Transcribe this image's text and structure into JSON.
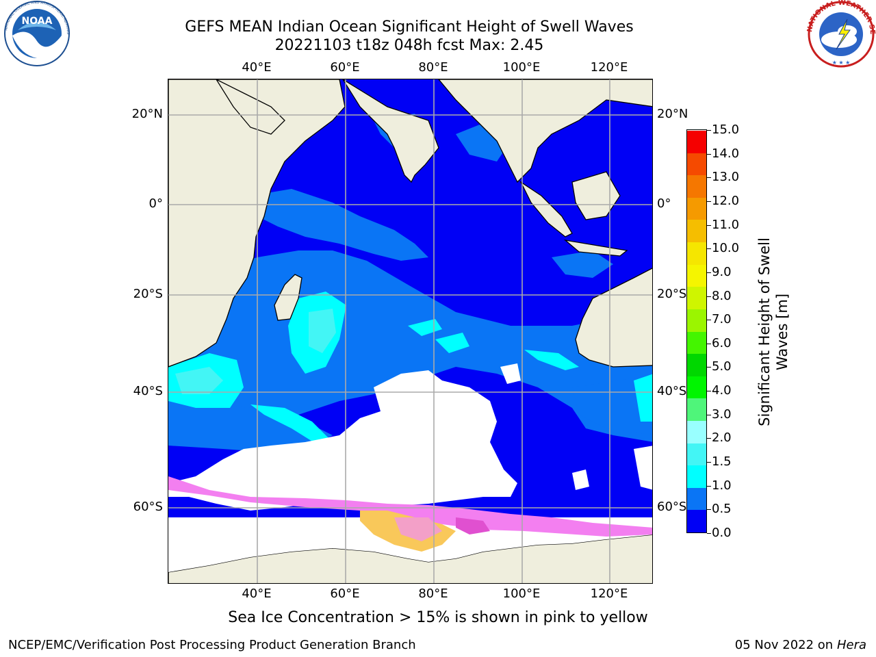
{
  "header": {
    "title_line1": "GEFS MEAN Indian Ocean Significant Height of Swell Waves",
    "title_line2": "20221103 t18z 048h fcst   Max: 2.45",
    "noaa_logo_text": "NOAA",
    "noaa_ring_text": "NATIONAL OCEANIC AND ATMOSPHERIC ADMINISTRATION · U.S. DEPARTMENT OF COMMERCE",
    "nws_ring_text": "NATIONAL WEATHER SERVICE"
  },
  "map": {
    "lon_ticks": [
      "40°E",
      "60°E",
      "80°E",
      "100°E",
      "120°E"
    ],
    "lat_ticks_left": [
      "20°N",
      "0°",
      "20°S",
      "40°S",
      "60°S"
    ],
    "lat_ticks_right": [
      "20°N",
      "0°",
      "20°S",
      "40°S",
      "60°S"
    ],
    "colors": {
      "land": "#efeedd",
      "ice_white": "#ffffff",
      "ocean_0": "#0000f5",
      "ocean_05": "#0a75f5",
      "ocean_1": "#00ffff",
      "ocean_15": "#43f5f5",
      "ice_pink": "#f37ff0",
      "ice_yellow": "#f9c85a"
    }
  },
  "colorbar": {
    "label": "Significant Height of Swell Waves [m]",
    "ticks": [
      "15.0",
      "14.0",
      "13.0",
      "12.0",
      "11.0",
      "10.0",
      "9.0",
      "8.0",
      "7.0",
      "6.0",
      "5.0",
      "4.0",
      "3.0",
      "2.0",
      "1.5",
      "1.0",
      "0.5",
      "0.0"
    ],
    "colors": [
      "#0000f5",
      "#0a75f5",
      "#00ffff",
      "#43f5f5",
      "#99ffff",
      "#4ff57a",
      "#00f500",
      "#00d700",
      "#44f500",
      "#9bf500",
      "#cff500",
      "#f5f500",
      "#f5e600",
      "#f5be00",
      "#f59a00",
      "#f57700",
      "#f54a00",
      "#f50000"
    ]
  },
  "footer": {
    "ice_caption": "Sea Ice Concentration > 15% is shown in pink to yellow",
    "left": "NCEP/EMC/Verification Post Processing Product Generation Branch",
    "right_date": "05 Nov 2022 on",
    "right_host": "Hera"
  }
}
